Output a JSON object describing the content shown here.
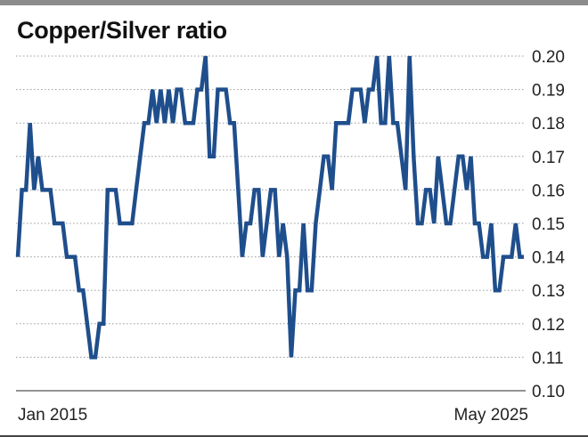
{
  "chart_data": {
    "type": "line",
    "title": "Copper/Silver ratio",
    "xlabel": "",
    "ylabel": "",
    "x_tick_labels": [
      "Jan 2015",
      "May 2025"
    ],
    "x_range": [
      "2015-01",
      "2025-05"
    ],
    "ylim": [
      0.1,
      0.2
    ],
    "y_ticks": [
      0.2,
      0.19,
      0.18,
      0.17,
      0.16,
      0.15,
      0.14,
      0.13,
      0.12,
      0.11,
      0.1
    ],
    "y_tick_labels": [
      "0.20",
      "0.19",
      "0.18",
      "0.17",
      "0.16",
      "0.15",
      "0.14",
      "0.13",
      "0.12",
      "0.11",
      "0.10"
    ],
    "grid": true,
    "legend": "none",
    "line_color": "#1f4e8c",
    "series": [
      {
        "values": [
          0.14,
          0.16,
          0.16,
          0.18,
          0.16,
          0.17,
          0.16,
          0.16,
          0.16,
          0.15,
          0.15,
          0.15,
          0.14,
          0.14,
          0.14,
          0.13,
          0.13,
          0.12,
          0.11,
          0.11,
          0.12,
          0.12,
          0.16,
          0.16,
          0.16,
          0.15,
          0.15,
          0.15,
          0.15,
          0.16,
          0.17,
          0.18,
          0.18,
          0.19,
          0.18,
          0.19,
          0.18,
          0.19,
          0.18,
          0.19,
          0.19,
          0.18,
          0.18,
          0.18,
          0.19,
          0.19,
          0.2,
          0.17,
          0.17,
          0.19,
          0.19,
          0.19,
          0.18,
          0.18,
          0.16,
          0.14,
          0.15,
          0.15,
          0.16,
          0.16,
          0.14,
          0.15,
          0.16,
          0.16,
          0.14,
          0.15,
          0.14,
          0.11,
          0.13,
          0.13,
          0.15,
          0.13,
          0.13,
          0.15,
          0.16,
          0.17,
          0.17,
          0.16,
          0.18,
          0.18,
          0.18,
          0.18,
          0.19,
          0.19,
          0.19,
          0.18,
          0.19,
          0.19,
          0.2,
          0.18,
          0.18,
          0.2,
          0.18,
          0.18,
          0.17,
          0.16,
          0.2,
          0.17,
          0.15,
          0.15,
          0.16,
          0.16,
          0.15,
          0.17,
          0.16,
          0.15,
          0.15,
          0.16,
          0.17,
          0.17,
          0.16,
          0.17,
          0.15,
          0.15,
          0.14,
          0.14,
          0.15,
          0.13,
          0.13,
          0.14,
          0.14,
          0.14,
          0.15,
          0.14,
          0.14
        ]
      }
    ]
  }
}
